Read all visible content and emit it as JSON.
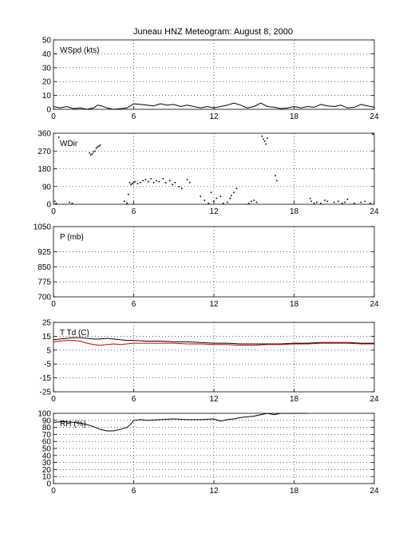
{
  "figure_title": "Juneau HNZ Meteogram:    August  8, 2000",
  "chart_data": [
    {
      "type": "line",
      "label": "WSpd (kts)",
      "xlim": [
        0,
        24
      ],
      "xticks": [
        "0",
        "6",
        "12",
        "18",
        "24"
      ],
      "ylim": [
        0,
        50
      ],
      "yticks": [
        "0",
        "10",
        "20",
        "30",
        "40",
        "50"
      ],
      "grid": true,
      "series": [
        {
          "color": "#000000",
          "x": [
            0,
            0.5,
            1,
            1.5,
            2,
            2.5,
            3,
            3.3,
            3.6,
            4,
            4.5,
            5,
            5.5,
            6,
            6.5,
            7,
            7.5,
            8,
            8.5,
            9,
            9.5,
            10,
            10.5,
            11,
            11.5,
            12,
            12.5,
            13,
            13.5,
            14,
            14.5,
            15,
            15.5,
            16,
            16.5,
            17,
            17.5,
            18,
            18.5,
            19,
            19.5,
            20,
            20.5,
            21,
            21.5,
            22,
            22.5,
            23,
            23.5,
            24
          ],
          "y": [
            2,
            1,
            2,
            0.5,
            1,
            0,
            1,
            3,
            2.5,
            1,
            0,
            0.5,
            1,
            4,
            3.5,
            3,
            2.5,
            4,
            3,
            3.5,
            2,
            3,
            2,
            1,
            2,
            1,
            2,
            3,
            4.5,
            3,
            1,
            2,
            4.5,
            2,
            1.5,
            0.5,
            1,
            2,
            1,
            2,
            1.5,
            3.5,
            2.5,
            2,
            3,
            1,
            1.5,
            3.5,
            2.5,
            1.5
          ]
        }
      ]
    },
    {
      "type": "scatter",
      "label": "WDir",
      "xlim": [
        0,
        24
      ],
      "xticks": [
        "0",
        "6",
        "12",
        "18",
        "24"
      ],
      "ylim": [
        0,
        360
      ],
      "yticks": [
        "0",
        "90",
        "180",
        "270",
        "360"
      ],
      "grid": true,
      "series": [
        {
          "color": "#000000",
          "x": [
            0.1,
            0.2,
            0.4,
            1.2,
            1.4,
            2.7,
            2.8,
            2.9,
            3.0,
            3.1,
            3.2,
            3.3,
            3.4,
            3.5,
            5.3,
            5.5,
            5.7,
            5.6,
            5.8,
            5.9,
            6.0,
            6.1,
            6.3,
            6.5,
            6.7,
            6.9,
            7.1,
            7.3,
            7.5,
            7.7,
            7.9,
            8.2,
            8.4,
            8.7,
            8.9,
            9.1,
            9.4,
            9.6,
            10.0,
            10.2,
            11.0,
            11.3,
            11.6,
            11.8,
            12.0,
            12.2,
            12.5,
            12.7,
            13.0,
            13.2,
            13.3,
            13.5,
            13.7,
            14.6,
            14.8,
            15.0,
            15.2,
            15.6,
            15.7,
            15.8,
            15.9,
            16.0,
            16.6,
            16.7,
            19.2,
            19.3,
            19.5,
            19.7,
            20.0,
            20.3,
            20.5,
            21.0,
            21.3,
            21.6,
            21.8,
            22.0,
            22.5,
            23.0,
            23.3,
            23.7,
            23.9
          ],
          "y": [
            15,
            5,
            340,
            10,
            5,
            260,
            250,
            255,
            265,
            270,
            285,
            290,
            295,
            300,
            15,
            5,
            110,
            50,
            100,
            105,
            110,
            115,
            105,
            110,
            120,
            125,
            115,
            130,
            110,
            120,
            115,
            130,
            110,
            120,
            100,
            110,
            90,
            80,
            125,
            110,
            40,
            20,
            5,
            60,
            15,
            30,
            40,
            5,
            10,
            30,
            45,
            60,
            80,
            5,
            15,
            20,
            10,
            345,
            330,
            320,
            305,
            335,
            145,
            120,
            30,
            15,
            5,
            10,
            5,
            20,
            15,
            10,
            15,
            5,
            10,
            25,
            5,
            10,
            15,
            5,
            355
          ]
        }
      ]
    },
    {
      "type": "line",
      "label": "P (mb)",
      "xlim": [
        0,
        24
      ],
      "xticks": [
        "0",
        "6",
        "12",
        "18",
        "24"
      ],
      "ylim": [
        700,
        1050
      ],
      "yticks": [
        "700",
        "775",
        "850",
        "925",
        "1050"
      ],
      "ytick_values": [
        700,
        775,
        850,
        925,
        1050
      ],
      "grid": true,
      "series": []
    },
    {
      "type": "line",
      "label": "T Td (C)",
      "xlim": [
        0,
        24
      ],
      "xticks": [
        "0",
        "6",
        "12",
        "18",
        "24"
      ],
      "ylim": [
        -25,
        25
      ],
      "yticks": [
        "-25",
        "-15",
        "-5",
        "5",
        "15",
        "25"
      ],
      "grid": true,
      "series": [
        {
          "color": "#000000",
          "x": [
            0,
            0.5,
            1,
            1.5,
            2,
            2.5,
            3,
            3.5,
            4,
            4.5,
            5,
            5.5,
            6,
            7,
            8,
            9,
            10,
            11,
            12,
            13,
            14,
            15,
            16,
            17,
            18,
            19,
            20,
            21,
            22,
            23,
            24
          ],
          "y": [
            12.5,
            13,
            13.5,
            14,
            14,
            13.5,
            13,
            13,
            13.5,
            13,
            12.5,
            12,
            12,
            11.5,
            11.5,
            11,
            11,
            10.5,
            10,
            10,
            9.5,
            9.5,
            9.5,
            9.5,
            10,
            10,
            10.5,
            10.5,
            10.5,
            10,
            10
          ]
        },
        {
          "color": "#cc0000",
          "x": [
            0,
            0.5,
            1,
            1.5,
            2,
            2.5,
            3,
            3.5,
            4,
            4.5,
            5,
            5.5,
            6,
            7,
            8,
            9,
            10,
            11,
            12,
            13,
            14,
            15,
            16,
            17,
            18,
            19,
            20,
            21,
            22,
            23,
            24
          ],
          "y": [
            11,
            11.5,
            12,
            12,
            11.5,
            10,
            9,
            8.5,
            9,
            9.5,
            9,
            9.5,
            10,
            10,
            10,
            10,
            9.5,
            9.5,
            9,
            9,
            8.5,
            8.5,
            9,
            9,
            9.5,
            9.5,
            10,
            10,
            10,
            9.5,
            9.5
          ]
        }
      ]
    },
    {
      "type": "line",
      "label": "RH (%)",
      "xlim": [
        0,
        24
      ],
      "xticks": [
        "0",
        "6",
        "12",
        "18",
        "24"
      ],
      "ylim": [
        0,
        100
      ],
      "yticks": [
        "0",
        "10",
        "20",
        "30",
        "40",
        "50",
        "60",
        "70",
        "80",
        "90",
        "100"
      ],
      "grid": true,
      "series": [
        {
          "color": "#000000",
          "x": [
            0,
            0.5,
            1,
            1.5,
            2,
            2.5,
            3,
            3.5,
            4,
            4.5,
            5,
            5.5,
            5.8,
            6,
            6.5,
            7,
            8,
            9,
            10,
            11,
            12,
            12.5,
            13,
            13.5,
            14,
            14.5,
            15,
            15.5,
            16,
            16.5,
            17,
            17.5,
            18,
            18.5,
            19
          ],
          "y": [
            87,
            88,
            88,
            87,
            86,
            84,
            81,
            77,
            75,
            75,
            77,
            80,
            85,
            90,
            91,
            90,
            91,
            92,
            91,
            91,
            92,
            89,
            91,
            92,
            94,
            95,
            96,
            98,
            100,
            98,
            100,
            100,
            100,
            100,
            100
          ]
        }
      ]
    }
  ]
}
